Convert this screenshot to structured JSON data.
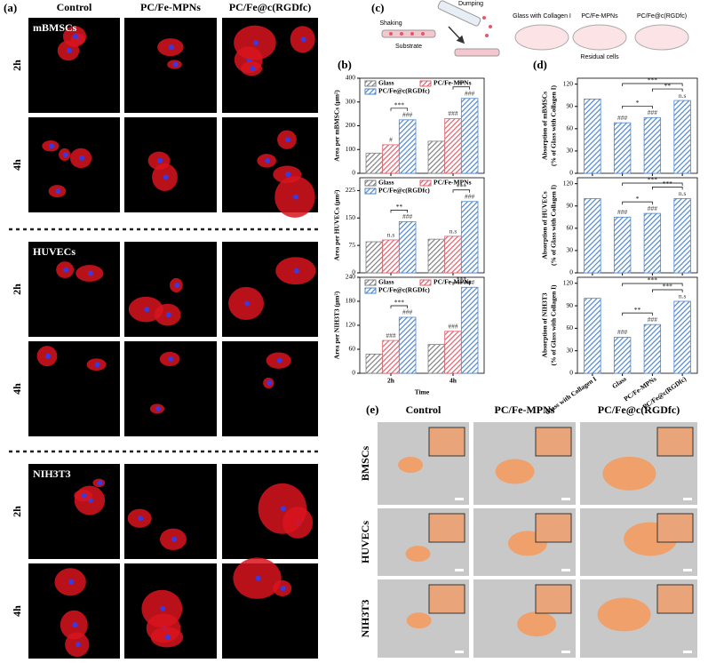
{
  "panel_a": {
    "label": "(a)",
    "columns": [
      "Control",
      "PC/Fe-MPNs",
      "PC/Fe@c(RGDfc)"
    ],
    "groups": [
      {
        "name": "mBMSCs",
        "rows": [
          "2h",
          "4h"
        ]
      },
      {
        "name": "HUVECs",
        "rows": [
          "2h",
          "4h"
        ]
      },
      {
        "name": "NIH3T3",
        "rows": [
          "2h",
          "4h"
        ]
      }
    ]
  },
  "panel_b": {
    "label": "(b)"
  },
  "panel_c": {
    "label": "(c)",
    "shaking": "Shaking",
    "substrate": "Substrate",
    "dumping": "Dumping",
    "dish_labels": [
      "Glass with Collagen I",
      "PC/Fe-MPNs",
      "PC/Fe@c(RGDfc)"
    ],
    "residual": "Residual cells"
  },
  "panel_d": {
    "label": "(d)"
  },
  "panel_e": {
    "label": "(e)",
    "columns": [
      "Control",
      "PC/Fe-MPNs",
      "PC/Fe@c(RGDfc)"
    ],
    "rows": [
      "BMSCs",
      "HUVECs",
      "NIH3T3"
    ]
  },
  "chart_data": [
    {
      "type": "bar",
      "ylabel": "Area per mBMSCs (μm²)",
      "categories": [
        null,
        null
      ],
      "legend": true,
      "ylim": [
        0,
        400
      ],
      "yticks": [
        0,
        100,
        200,
        300,
        400
      ],
      "series": [
        {
          "name": "Glass",
          "color": "#7f7f7f",
          "values": [
            85,
            135
          ],
          "annotations": [
            null,
            null
          ]
        },
        {
          "name": "PC/Fe-MPNs",
          "color": "#e0606c",
          "values": [
            120,
            230
          ],
          "annotations": [
            "#",
            "###"
          ]
        },
        {
          "name": "PC/Fe@c(RGDfc)",
          "color": "#4f86d0",
          "values": [
            225,
            315
          ],
          "annotations": [
            "###",
            "###"
          ]
        }
      ],
      "brackets": [
        {
          "label": "***",
          "category": 0,
          "from": 1,
          "to": 2
        },
        {
          "label": "**",
          "category": 1,
          "from": 1,
          "to": 2
        }
      ]
    },
    {
      "type": "bar",
      "ylabel": "Area per HUVECs (μm²)",
      "categories": [
        null,
        null
      ],
      "legend": true,
      "ylim": [
        0,
        260
      ],
      "yticks": [
        0,
        75,
        150,
        225
      ],
      "series": [
        {
          "name": "Glass",
          "color": "#7f7f7f",
          "values": [
            85,
            92
          ],
          "annotations": [
            null,
            null
          ]
        },
        {
          "name": "PC/Fe-MPNs",
          "color": "#e0606c",
          "values": [
            90,
            100
          ],
          "annotations": [
            "n.s",
            "n.s"
          ]
        },
        {
          "name": "PC/Fe@c(RGDfc)",
          "color": "#4f86d0",
          "values": [
            140,
            195
          ],
          "annotations": [
            "###",
            "###"
          ]
        }
      ],
      "brackets": [
        {
          "label": "**",
          "category": 0,
          "from": 1,
          "to": 2
        },
        {
          "label": "***",
          "category": 1,
          "from": 1,
          "to": 2
        }
      ]
    },
    {
      "type": "bar",
      "ylabel": "Area per NIH3T3 (μm²)",
      "xlabel": "Time",
      "categories": [
        "2h",
        "4h"
      ],
      "legend": true,
      "ylim": [
        0,
        240
      ],
      "yticks": [
        0,
        60,
        120,
        180,
        240
      ],
      "series": [
        {
          "name": "Glass",
          "color": "#7f7f7f",
          "values": [
            48,
            72
          ],
          "annotations": [
            null,
            null
          ]
        },
        {
          "name": "PC/Fe-MPNs",
          "color": "#e0606c",
          "values": [
            82,
            105
          ],
          "annotations": [
            "###",
            "###"
          ]
        },
        {
          "name": "PC/Fe@c(RGDfc)",
          "color": "#4f86d0",
          "values": [
            140,
            215
          ],
          "annotations": [
            "###",
            "###"
          ]
        }
      ],
      "brackets": [
        {
          "label": "***",
          "category": 0,
          "from": 1,
          "to": 2
        },
        {
          "label": "***",
          "category": 1,
          "from": 1,
          "to": 2
        }
      ]
    },
    {
      "type": "bar",
      "ylabel": [
        "Absorption of mBMSCs",
        "(% of Glass with Collagen I)"
      ],
      "categories": [
        null,
        null,
        null,
        null
      ],
      "legend": false,
      "ylim": [
        0,
        128
      ],
      "yticks": [
        0,
        30,
        60,
        90,
        120
      ],
      "series": [
        {
          "color": "#4f86d0",
          "values": [
            100,
            68,
            75,
            98
          ],
          "annotations": [
            null,
            "###",
            "###",
            "n.s"
          ]
        }
      ],
      "brackets": [
        {
          "label": "*",
          "from": 1,
          "to": 2
        },
        {
          "label": "**",
          "from": 2,
          "to": 3
        },
        {
          "label": "***",
          "from": 1,
          "to": 3
        }
      ]
    },
    {
      "type": "bar",
      "ylabel": [
        "Absorption of HUVECs",
        "(% of Glass with Collagen I)"
      ],
      "categories": [
        null,
        null,
        null,
        null
      ],
      "legend": false,
      "ylim": [
        0,
        128
      ],
      "yticks": [
        0,
        30,
        60,
        90,
        120
      ],
      "series": [
        {
          "color": "#4f86d0",
          "values": [
            100,
            75,
            80,
            100
          ],
          "annotations": [
            null,
            "###",
            "###",
            "n.s"
          ]
        }
      ],
      "brackets": [
        {
          "label": "*",
          "from": 1,
          "to": 2
        },
        {
          "label": "***",
          "from": 2,
          "to": 3
        },
        {
          "label": "***",
          "from": 1,
          "to": 3
        }
      ]
    },
    {
      "type": "bar",
      "ylabel": [
        "Absorption of NIH3T3",
        "(% of Glass with Collagen I)"
      ],
      "categories": [
        "Glass with Collagen I",
        "Glass",
        "PC/Fe-MPNs",
        "PC/Fe@c(RGDfc)"
      ],
      "legend": false,
      "xtick_rotation": -35,
      "ylim": [
        0,
        128
      ],
      "yticks": [
        0,
        30,
        60,
        90,
        120
      ],
      "series": [
        {
          "color": "#4f86d0",
          "values": [
            100,
            48,
            65,
            96
          ],
          "annotations": [
            null,
            "###",
            "###",
            "n.s"
          ]
        }
      ],
      "brackets": [
        {
          "label": "**",
          "from": 1,
          "to": 2
        },
        {
          "label": "***",
          "from": 2,
          "to": 3
        },
        {
          "label": "***",
          "from": 1,
          "to": 3
        }
      ]
    }
  ]
}
